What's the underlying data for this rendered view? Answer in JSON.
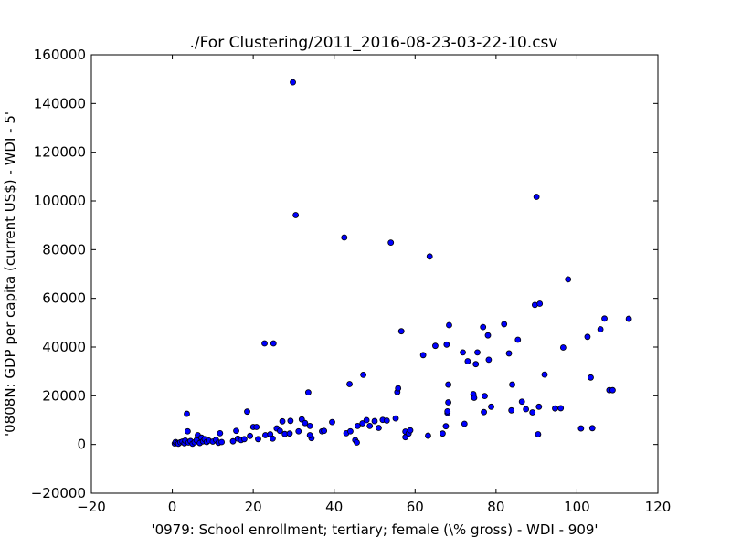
{
  "chart_data": {
    "type": "scatter",
    "title": "./For Clustering/2011_2016-08-23-03-22-10.csv",
    "xlabel": "'0979: School enrollment; tertiary; female  (\\% gross) - WDI - 909'",
    "ylabel": "'0808N: GDP per capita  (current US$) - WDI - 5'",
    "xlim": [
      -20,
      120
    ],
    "ylim": [
      -20000,
      160000
    ],
    "xticks": [
      "−20",
      "0",
      "20",
      "40",
      "60",
      "80",
      "100",
      "120"
    ],
    "yticks": [
      "−20000",
      "0",
      "20000",
      "40000",
      "60000",
      "80000",
      "100000",
      "120000",
      "140000",
      "160000"
    ],
    "grid": false,
    "marker_color": "#0000ff",
    "points": [
      [
        0.6,
        400
      ],
      [
        0.8,
        1000
      ],
      [
        1.2,
        600
      ],
      [
        1.5,
        300
      ],
      [
        2.0,
        900
      ],
      [
        2.5,
        1200
      ],
      [
        3.0,
        500
      ],
      [
        3.2,
        1600
      ],
      [
        3.6,
        12600
      ],
      [
        3.8,
        5400
      ],
      [
        4.0,
        800
      ],
      [
        4.5,
        1400
      ],
      [
        5.0,
        300
      ],
      [
        5.5,
        900
      ],
      [
        6.0,
        1800
      ],
      [
        6.3,
        3800
      ],
      [
        6.8,
        600
      ],
      [
        7.2,
        2800
      ],
      [
        7.6,
        1300
      ],
      [
        8.0,
        2200
      ],
      [
        8.5,
        1000
      ],
      [
        9.0,
        1600
      ],
      [
        10.0,
        1200
      ],
      [
        10.8,
        1900
      ],
      [
        11.4,
        700
      ],
      [
        11.8,
        4600
      ],
      [
        12.2,
        1000
      ],
      [
        15.0,
        1300
      ],
      [
        15.8,
        5600
      ],
      [
        16.2,
        2400
      ],
      [
        17.0,
        1800
      ],
      [
        17.8,
        2200
      ],
      [
        18.5,
        13500
      ],
      [
        19.2,
        3500
      ],
      [
        20.0,
        7200
      ],
      [
        20.8,
        7200
      ],
      [
        21.2,
        2200
      ],
      [
        22.8,
        41500
      ],
      [
        23.0,
        3800
      ],
      [
        24.2,
        4200
      ],
      [
        24.8,
        2400
      ],
      [
        25.0,
        41500
      ],
      [
        25.8,
        6600
      ],
      [
        26.6,
        5600
      ],
      [
        27.2,
        9500
      ],
      [
        27.8,
        4300
      ],
      [
        29.0,
        4500
      ],
      [
        29.8,
        148700
      ],
      [
        29.2,
        9700
      ],
      [
        30.5,
        94200
      ],
      [
        31.2,
        5400
      ],
      [
        32.0,
        10300
      ],
      [
        32.8,
        8800
      ],
      [
        33.6,
        21400
      ],
      [
        34.0,
        7600
      ],
      [
        34.4,
        2600
      ],
      [
        34.0,
        3800
      ],
      [
        37.0,
        5400
      ],
      [
        37.5,
        5600
      ],
      [
        39.5,
        9200
      ],
      [
        42.5,
        85000
      ],
      [
        43.0,
        4600
      ],
      [
        43.8,
        24800
      ],
      [
        44.0,
        5400
      ],
      [
        45.2,
        1800
      ],
      [
        45.6,
        800
      ],
      [
        45.8,
        7600
      ],
      [
        47.0,
        8700
      ],
      [
        47.2,
        28600
      ],
      [
        48.0,
        10000
      ],
      [
        48.8,
        7600
      ],
      [
        50.0,
        9600
      ],
      [
        51.0,
        6800
      ],
      [
        52.0,
        10100
      ],
      [
        53.0,
        9800
      ],
      [
        54.0,
        82900
      ],
      [
        55.2,
        10700
      ],
      [
        55.6,
        21500
      ],
      [
        55.8,
        23100
      ],
      [
        56.6,
        46500
      ],
      [
        57.6,
        5300
      ],
      [
        57.6,
        3000
      ],
      [
        58.4,
        4500
      ],
      [
        58.8,
        5800
      ],
      [
        62.0,
        36700
      ],
      [
        63.2,
        3600
      ],
      [
        63.6,
        77200
      ],
      [
        65.0,
        40500
      ],
      [
        66.8,
        4500
      ],
      [
        67.6,
        7500
      ],
      [
        67.8,
        41000
      ],
      [
        68.0,
        13000
      ],
      [
        68.0,
        13600
      ],
      [
        68.2,
        24600
      ],
      [
        68.2,
        17300
      ],
      [
        68.4,
        49000
      ],
      [
        71.8,
        37800
      ],
      [
        72.2,
        8500
      ],
      [
        73.0,
        34200
      ],
      [
        74.4,
        20700
      ],
      [
        74.6,
        19200
      ],
      [
        75.0,
        33000
      ],
      [
        75.4,
        37800
      ],
      [
        76.8,
        48200
      ],
      [
        77.0,
        13300
      ],
      [
        77.2,
        19900
      ],
      [
        78.0,
        44800
      ],
      [
        78.2,
        34800
      ],
      [
        78.8,
        15500
      ],
      [
        82.0,
        49400
      ],
      [
        83.2,
        37400
      ],
      [
        83.8,
        14000
      ],
      [
        84.0,
        24600
      ],
      [
        85.4,
        43000
      ],
      [
        86.4,
        17600
      ],
      [
        87.4,
        14500
      ],
      [
        89.0,
        13200
      ],
      [
        89.6,
        57300
      ],
      [
        90.0,
        101700
      ],
      [
        90.4,
        4200
      ],
      [
        90.6,
        15500
      ],
      [
        90.8,
        57800
      ],
      [
        92.0,
        28700
      ],
      [
        94.6,
        14800
      ],
      [
        96.0,
        14900
      ],
      [
        96.6,
        39800
      ],
      [
        97.8,
        67800
      ],
      [
        101.0,
        6600
      ],
      [
        102.6,
        44200
      ],
      [
        103.4,
        27500
      ],
      [
        103.8,
        6700
      ],
      [
        105.8,
        47300
      ],
      [
        106.8,
        51700
      ],
      [
        108.0,
        22300
      ],
      [
        108.8,
        22300
      ],
      [
        112.8,
        51600
      ]
    ]
  }
}
